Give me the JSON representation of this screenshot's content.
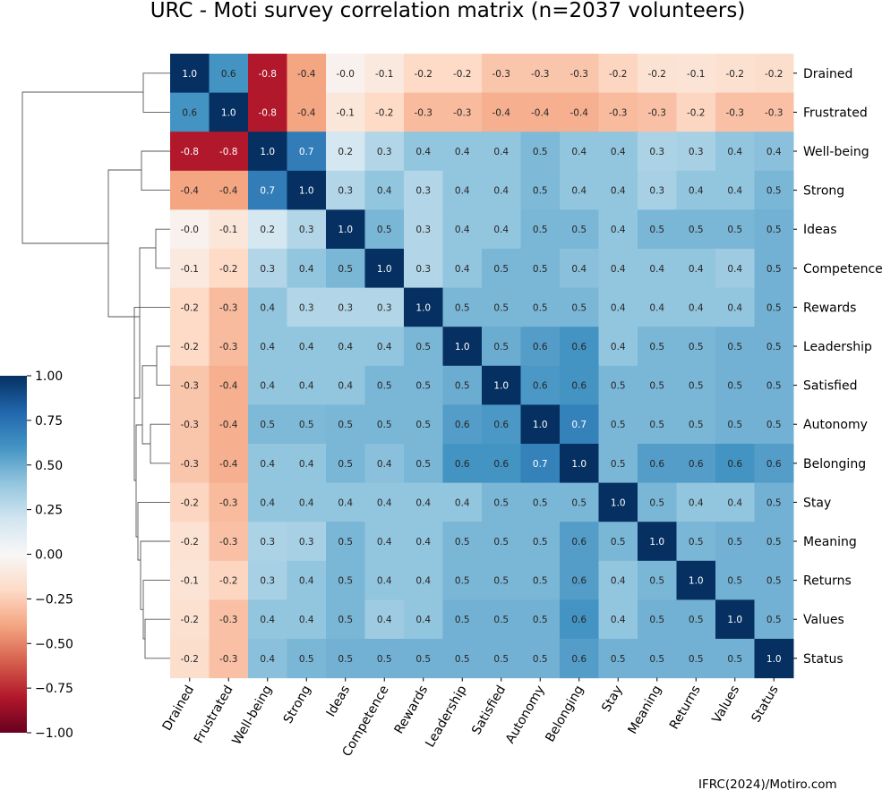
{
  "chart_data": {
    "type": "heatmap",
    "title": "URC - Moti survey correlation matrix (n=2037 volunteers)",
    "labels": [
      "Drained",
      "Frustrated",
      "Well-being",
      "Strong",
      "Ideas",
      "Competence",
      "Rewards",
      "Leadership",
      "Satisfied",
      "Autonomy",
      "Belonging",
      "Stay",
      "Meaning",
      "Returns",
      "Values",
      "Status"
    ],
    "value_labels": [
      [
        "1.0",
        "0.6",
        "-0.8",
        "-0.4",
        "-0.0",
        "-0.1",
        "-0.2",
        "-0.2",
        "-0.3",
        "-0.3",
        "-0.3",
        "-0.2",
        "-0.2",
        "-0.1",
        "-0.2",
        "-0.2"
      ],
      [
        "0.6",
        "1.0",
        "-0.8",
        "-0.4",
        "-0.1",
        "-0.2",
        "-0.3",
        "-0.3",
        "-0.4",
        "-0.4",
        "-0.4",
        "-0.3",
        "-0.3",
        "-0.2",
        "-0.3",
        "-0.3"
      ],
      [
        "-0.8",
        "-0.8",
        "1.0",
        "0.7",
        "0.2",
        "0.3",
        "0.4",
        "0.4",
        "0.4",
        "0.5",
        "0.4",
        "0.4",
        "0.3",
        "0.3",
        "0.4",
        "0.4"
      ],
      [
        "-0.4",
        "-0.4",
        "0.7",
        "1.0",
        "0.3",
        "0.4",
        "0.3",
        "0.4",
        "0.4",
        "0.5",
        "0.4",
        "0.4",
        "0.3",
        "0.4",
        "0.4",
        "0.5"
      ],
      [
        "-0.0",
        "-0.1",
        "0.2",
        "0.3",
        "1.0",
        "0.5",
        "0.3",
        "0.4",
        "0.4",
        "0.5",
        "0.5",
        "0.4",
        "0.5",
        "0.5",
        "0.5",
        "0.5"
      ],
      [
        "-0.1",
        "-0.2",
        "0.3",
        "0.4",
        "0.5",
        "1.0",
        "0.3",
        "0.4",
        "0.5",
        "0.5",
        "0.4",
        "0.4",
        "0.4",
        "0.4",
        "0.4",
        "0.5"
      ],
      [
        "-0.2",
        "-0.3",
        "0.4",
        "0.3",
        "0.3",
        "0.3",
        "1.0",
        "0.5",
        "0.5",
        "0.5",
        "0.5",
        "0.4",
        "0.4",
        "0.4",
        "0.4",
        "0.5"
      ],
      [
        "-0.2",
        "-0.3",
        "0.4",
        "0.4",
        "0.4",
        "0.4",
        "0.5",
        "1.0",
        "0.5",
        "0.6",
        "0.6",
        "0.4",
        "0.5",
        "0.5",
        "0.5",
        "0.5"
      ],
      [
        "-0.3",
        "-0.4",
        "0.4",
        "0.4",
        "0.4",
        "0.5",
        "0.5",
        "0.5",
        "1.0",
        "0.6",
        "0.6",
        "0.5",
        "0.5",
        "0.5",
        "0.5",
        "0.5"
      ],
      [
        "-0.3",
        "-0.4",
        "0.5",
        "0.5",
        "0.5",
        "0.5",
        "0.5",
        "0.6",
        "0.6",
        "1.0",
        "0.7",
        "0.5",
        "0.5",
        "0.5",
        "0.5",
        "0.5"
      ],
      [
        "-0.3",
        "-0.4",
        "0.4",
        "0.4",
        "0.5",
        "0.4",
        "0.5",
        "0.6",
        "0.6",
        "0.7",
        "1.0",
        "0.5",
        "0.6",
        "0.6",
        "0.6",
        "0.6"
      ],
      [
        "-0.2",
        "-0.3",
        "0.4",
        "0.4",
        "0.4",
        "0.4",
        "0.4",
        "0.4",
        "0.5",
        "0.5",
        "0.5",
        "1.0",
        "0.5",
        "0.4",
        "0.4",
        "0.5"
      ],
      [
        "-0.2",
        "-0.3",
        "0.3",
        "0.3",
        "0.5",
        "0.4",
        "0.4",
        "0.5",
        "0.5",
        "0.5",
        "0.6",
        "0.5",
        "1.0",
        "0.5",
        "0.5",
        "0.5"
      ],
      [
        "-0.1",
        "-0.2",
        "0.3",
        "0.4",
        "0.5",
        "0.4",
        "0.4",
        "0.5",
        "0.5",
        "0.5",
        "0.6",
        "0.4",
        "0.5",
        "1.0",
        "0.5",
        "0.5"
      ],
      [
        "-0.2",
        "-0.3",
        "0.4",
        "0.4",
        "0.5",
        "0.4",
        "0.4",
        "0.5",
        "0.5",
        "0.5",
        "0.6",
        "0.4",
        "0.5",
        "0.5",
        "1.0",
        "0.5"
      ],
      [
        "-0.2",
        "-0.3",
        "0.4",
        "0.5",
        "0.5",
        "0.5",
        "0.5",
        "0.5",
        "0.5",
        "0.5",
        "0.6",
        "0.5",
        "0.5",
        "0.5",
        "0.5",
        "1.0"
      ]
    ],
    "color_values": [
      [
        1.0,
        0.6,
        -0.8,
        -0.4,
        -0.04,
        -0.1,
        -0.2,
        -0.2,
        -0.28,
        -0.28,
        -0.28,
        -0.22,
        -0.15,
        -0.14,
        -0.16,
        -0.18
      ],
      [
        0.6,
        1.0,
        -0.8,
        -0.4,
        -0.12,
        -0.2,
        -0.32,
        -0.32,
        -0.36,
        -0.36,
        -0.36,
        -0.32,
        -0.3,
        -0.22,
        -0.3,
        -0.3
      ],
      [
        -0.8,
        -0.8,
        1.0,
        0.7,
        0.18,
        0.3,
        0.4,
        0.4,
        0.4,
        0.45,
        0.4,
        0.4,
        0.32,
        0.33,
        0.4,
        0.42
      ],
      [
        -0.4,
        -0.4,
        0.7,
        1.0,
        0.3,
        0.4,
        0.3,
        0.4,
        0.4,
        0.45,
        0.4,
        0.4,
        0.33,
        0.4,
        0.4,
        0.46
      ],
      [
        -0.04,
        -0.12,
        0.18,
        0.3,
        1.0,
        0.46,
        0.3,
        0.4,
        0.4,
        0.46,
        0.46,
        0.4,
        0.46,
        0.46,
        0.46,
        0.48
      ],
      [
        -0.1,
        -0.2,
        0.3,
        0.4,
        0.46,
        1.0,
        0.3,
        0.4,
        0.46,
        0.46,
        0.42,
        0.4,
        0.4,
        0.4,
        0.36,
        0.48
      ],
      [
        -0.2,
        -0.32,
        0.4,
        0.3,
        0.3,
        0.3,
        1.0,
        0.46,
        0.46,
        0.46,
        0.46,
        0.4,
        0.4,
        0.4,
        0.4,
        0.48
      ],
      [
        -0.2,
        -0.32,
        0.4,
        0.4,
        0.4,
        0.4,
        0.46,
        1.0,
        0.5,
        0.56,
        0.6,
        0.4,
        0.46,
        0.46,
        0.48,
        0.48
      ],
      [
        -0.28,
        -0.36,
        0.4,
        0.4,
        0.4,
        0.46,
        0.46,
        0.5,
        1.0,
        0.58,
        0.6,
        0.46,
        0.46,
        0.46,
        0.48,
        0.48
      ],
      [
        -0.28,
        -0.36,
        0.45,
        0.45,
        0.46,
        0.46,
        0.46,
        0.56,
        0.58,
        1.0,
        0.68,
        0.46,
        0.46,
        0.46,
        0.48,
        0.48
      ],
      [
        -0.28,
        -0.36,
        0.4,
        0.4,
        0.46,
        0.42,
        0.46,
        0.6,
        0.6,
        0.68,
        1.0,
        0.46,
        0.56,
        0.56,
        0.6,
        0.56
      ],
      [
        -0.22,
        -0.32,
        0.4,
        0.4,
        0.4,
        0.4,
        0.4,
        0.4,
        0.46,
        0.46,
        0.46,
        1.0,
        0.46,
        0.4,
        0.4,
        0.48
      ],
      [
        -0.15,
        -0.3,
        0.32,
        0.33,
        0.46,
        0.4,
        0.4,
        0.46,
        0.46,
        0.46,
        0.56,
        0.46,
        1.0,
        0.46,
        0.48,
        0.48
      ],
      [
        -0.14,
        -0.22,
        0.33,
        0.4,
        0.46,
        0.4,
        0.4,
        0.46,
        0.46,
        0.46,
        0.56,
        0.4,
        0.46,
        1.0,
        0.48,
        0.48
      ],
      [
        -0.16,
        -0.3,
        0.4,
        0.4,
        0.46,
        0.36,
        0.4,
        0.48,
        0.48,
        0.48,
        0.6,
        0.4,
        0.48,
        0.48,
        1.0,
        0.48
      ],
      [
        -0.18,
        -0.3,
        0.42,
        0.46,
        0.48,
        0.48,
        0.48,
        0.48,
        0.48,
        0.48,
        0.56,
        0.48,
        0.48,
        0.48,
        0.48,
        1.0
      ]
    ],
    "colormap": "RdBu",
    "vmin": -1.0,
    "vmax": 1.0,
    "colorbar_ticks": [
      "1.00",
      "0.75",
      "0.50",
      "0.25",
      "0.00",
      "−0.25",
      "−0.50",
      "−0.75",
      "−1.00"
    ],
    "dendrogram": "row",
    "credit": "IFRC(2024)/Motiro.com"
  }
}
